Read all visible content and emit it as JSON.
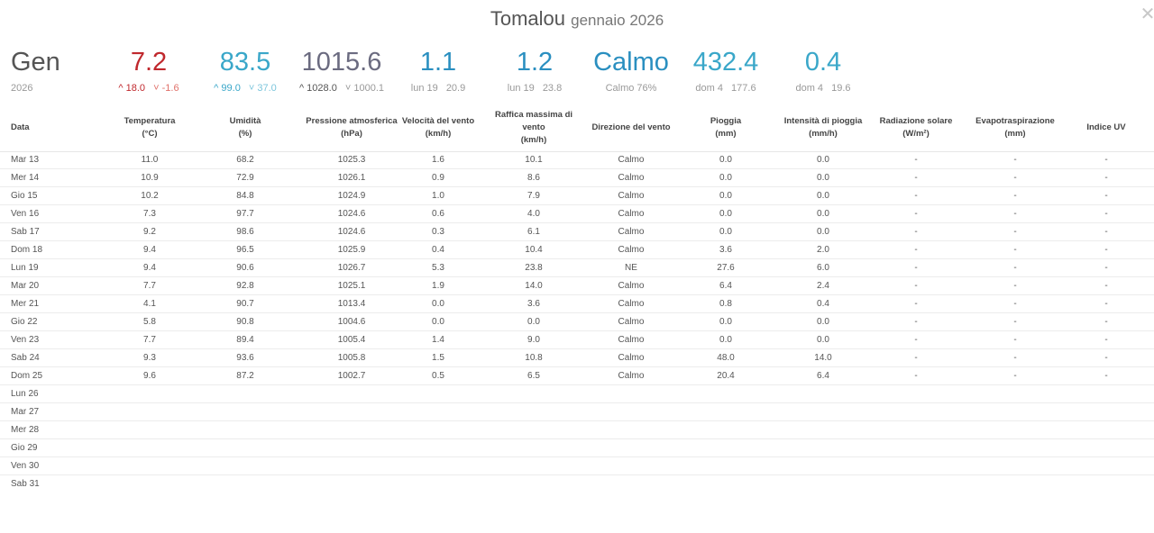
{
  "title": {
    "station": "Tomalou",
    "period": "gennaio 2026"
  },
  "colors": {
    "temp": "#c0282d",
    "temp_low": "#e0716a",
    "hum": "#3aa7c9",
    "press": "#6b6b80",
    "wind": "#2a8fc0"
  },
  "summary": {
    "month": {
      "big": "Gen",
      "small": "2026"
    },
    "temperature": {
      "big": "7.2",
      "high": "18.0",
      "low": "-1.6"
    },
    "humidity": {
      "big": "83.5",
      "high": "99.0",
      "low": "37.0"
    },
    "pressure": {
      "big": "1015.6",
      "high": "1028.0",
      "low": "1000.1"
    },
    "wind_speed": {
      "big": "1.1",
      "day": "lun 19",
      "value": "20.9"
    },
    "gust": {
      "big": "1.2",
      "day": "lun 19",
      "value": "23.8"
    },
    "wind_dir": {
      "big": "Calmo",
      "small": "Calmo 76%"
    },
    "rain": {
      "big": "432.4",
      "day": "dom 4",
      "value": "177.6"
    },
    "rain_rate": {
      "big": "0.4",
      "day": "dom 4",
      "value": "19.6"
    }
  },
  "headers": {
    "date": "Data",
    "temp": [
      "Temperatura",
      "(°C)"
    ],
    "hum": [
      "Umidità",
      "(%)"
    ],
    "press": [
      "Pressione atmosferica",
      "(hPa)"
    ],
    "wind": [
      "Velocità del vento",
      "(km/h)"
    ],
    "gust": [
      "Raffica massima di",
      "vento",
      "(km/h)"
    ],
    "dir": [
      "Direzione del vento"
    ],
    "rain": [
      "Pioggia",
      "(mm)"
    ],
    "rate": [
      "Intensità di pioggia",
      "(mm/h)"
    ],
    "solar": [
      "Radiazione solare",
      "(W/m²)"
    ],
    "evap": [
      "Evapotraspirazione",
      "(mm)"
    ],
    "uv": [
      "Indice UV"
    ]
  },
  "rows": [
    [
      "Mar 13",
      "11.0",
      "68.2",
      "1025.3",
      "1.6",
      "10.1",
      "Calmo",
      "0.0",
      "0.0",
      "-",
      "-",
      "-"
    ],
    [
      "Mer 14",
      "10.9",
      "72.9",
      "1026.1",
      "0.9",
      "8.6",
      "Calmo",
      "0.0",
      "0.0",
      "-",
      "-",
      "-"
    ],
    [
      "Gio 15",
      "10.2",
      "84.8",
      "1024.9",
      "1.0",
      "7.9",
      "Calmo",
      "0.0",
      "0.0",
      "-",
      "-",
      "-"
    ],
    [
      "Ven 16",
      "7.3",
      "97.7",
      "1024.6",
      "0.6",
      "4.0",
      "Calmo",
      "0.0",
      "0.0",
      "-",
      "-",
      "-"
    ],
    [
      "Sab 17",
      "9.2",
      "98.6",
      "1024.6",
      "0.3",
      "6.1",
      "Calmo",
      "0.0",
      "0.0",
      "-",
      "-",
      "-"
    ],
    [
      "Dom 18",
      "9.4",
      "96.5",
      "1025.9",
      "0.4",
      "10.4",
      "Calmo",
      "3.6",
      "2.0",
      "-",
      "-",
      "-"
    ],
    [
      "Lun 19",
      "9.4",
      "90.6",
      "1026.7",
      "5.3",
      "23.8",
      "NE",
      "27.6",
      "6.0",
      "-",
      "-",
      "-"
    ],
    [
      "Mar 20",
      "7.7",
      "92.8",
      "1025.1",
      "1.9",
      "14.0",
      "Calmo",
      "6.4",
      "2.4",
      "-",
      "-",
      "-"
    ],
    [
      "Mer 21",
      "4.1",
      "90.7",
      "1013.4",
      "0.0",
      "3.6",
      "Calmo",
      "0.8",
      "0.4",
      "-",
      "-",
      "-"
    ],
    [
      "Gio 22",
      "5.8",
      "90.8",
      "1004.6",
      "0.0",
      "0.0",
      "Calmo",
      "0.0",
      "0.0",
      "-",
      "-",
      "-"
    ],
    [
      "Ven 23",
      "7.7",
      "89.4",
      "1005.4",
      "1.4",
      "9.0",
      "Calmo",
      "0.0",
      "0.0",
      "-",
      "-",
      "-"
    ],
    [
      "Sab 24",
      "9.3",
      "93.6",
      "1005.8",
      "1.5",
      "10.8",
      "Calmo",
      "48.0",
      "14.0",
      "-",
      "-",
      "-"
    ],
    [
      "Dom 25",
      "9.6",
      "87.2",
      "1002.7",
      "0.5",
      "6.5",
      "Calmo",
      "20.4",
      "6.4",
      "-",
      "-",
      "-"
    ],
    [
      "Lun 26",
      "",
      "",
      "",
      "",
      "",
      "",
      "",
      "",
      "",
      "",
      ""
    ],
    [
      "Mar 27",
      "",
      "",
      "",
      "",
      "",
      "",
      "",
      "",
      "",
      "",
      ""
    ],
    [
      "Mer 28",
      "",
      "",
      "",
      "",
      "",
      "",
      "",
      "",
      "",
      "",
      ""
    ],
    [
      "Gio 29",
      "",
      "",
      "",
      "",
      "",
      "",
      "",
      "",
      "",
      "",
      ""
    ],
    [
      "Ven 30",
      "",
      "",
      "",
      "",
      "",
      "",
      "",
      "",
      "",
      "",
      ""
    ],
    [
      "Sab 31",
      "",
      "",
      "",
      "",
      "",
      "",
      "",
      "",
      "",
      "",
      ""
    ]
  ]
}
